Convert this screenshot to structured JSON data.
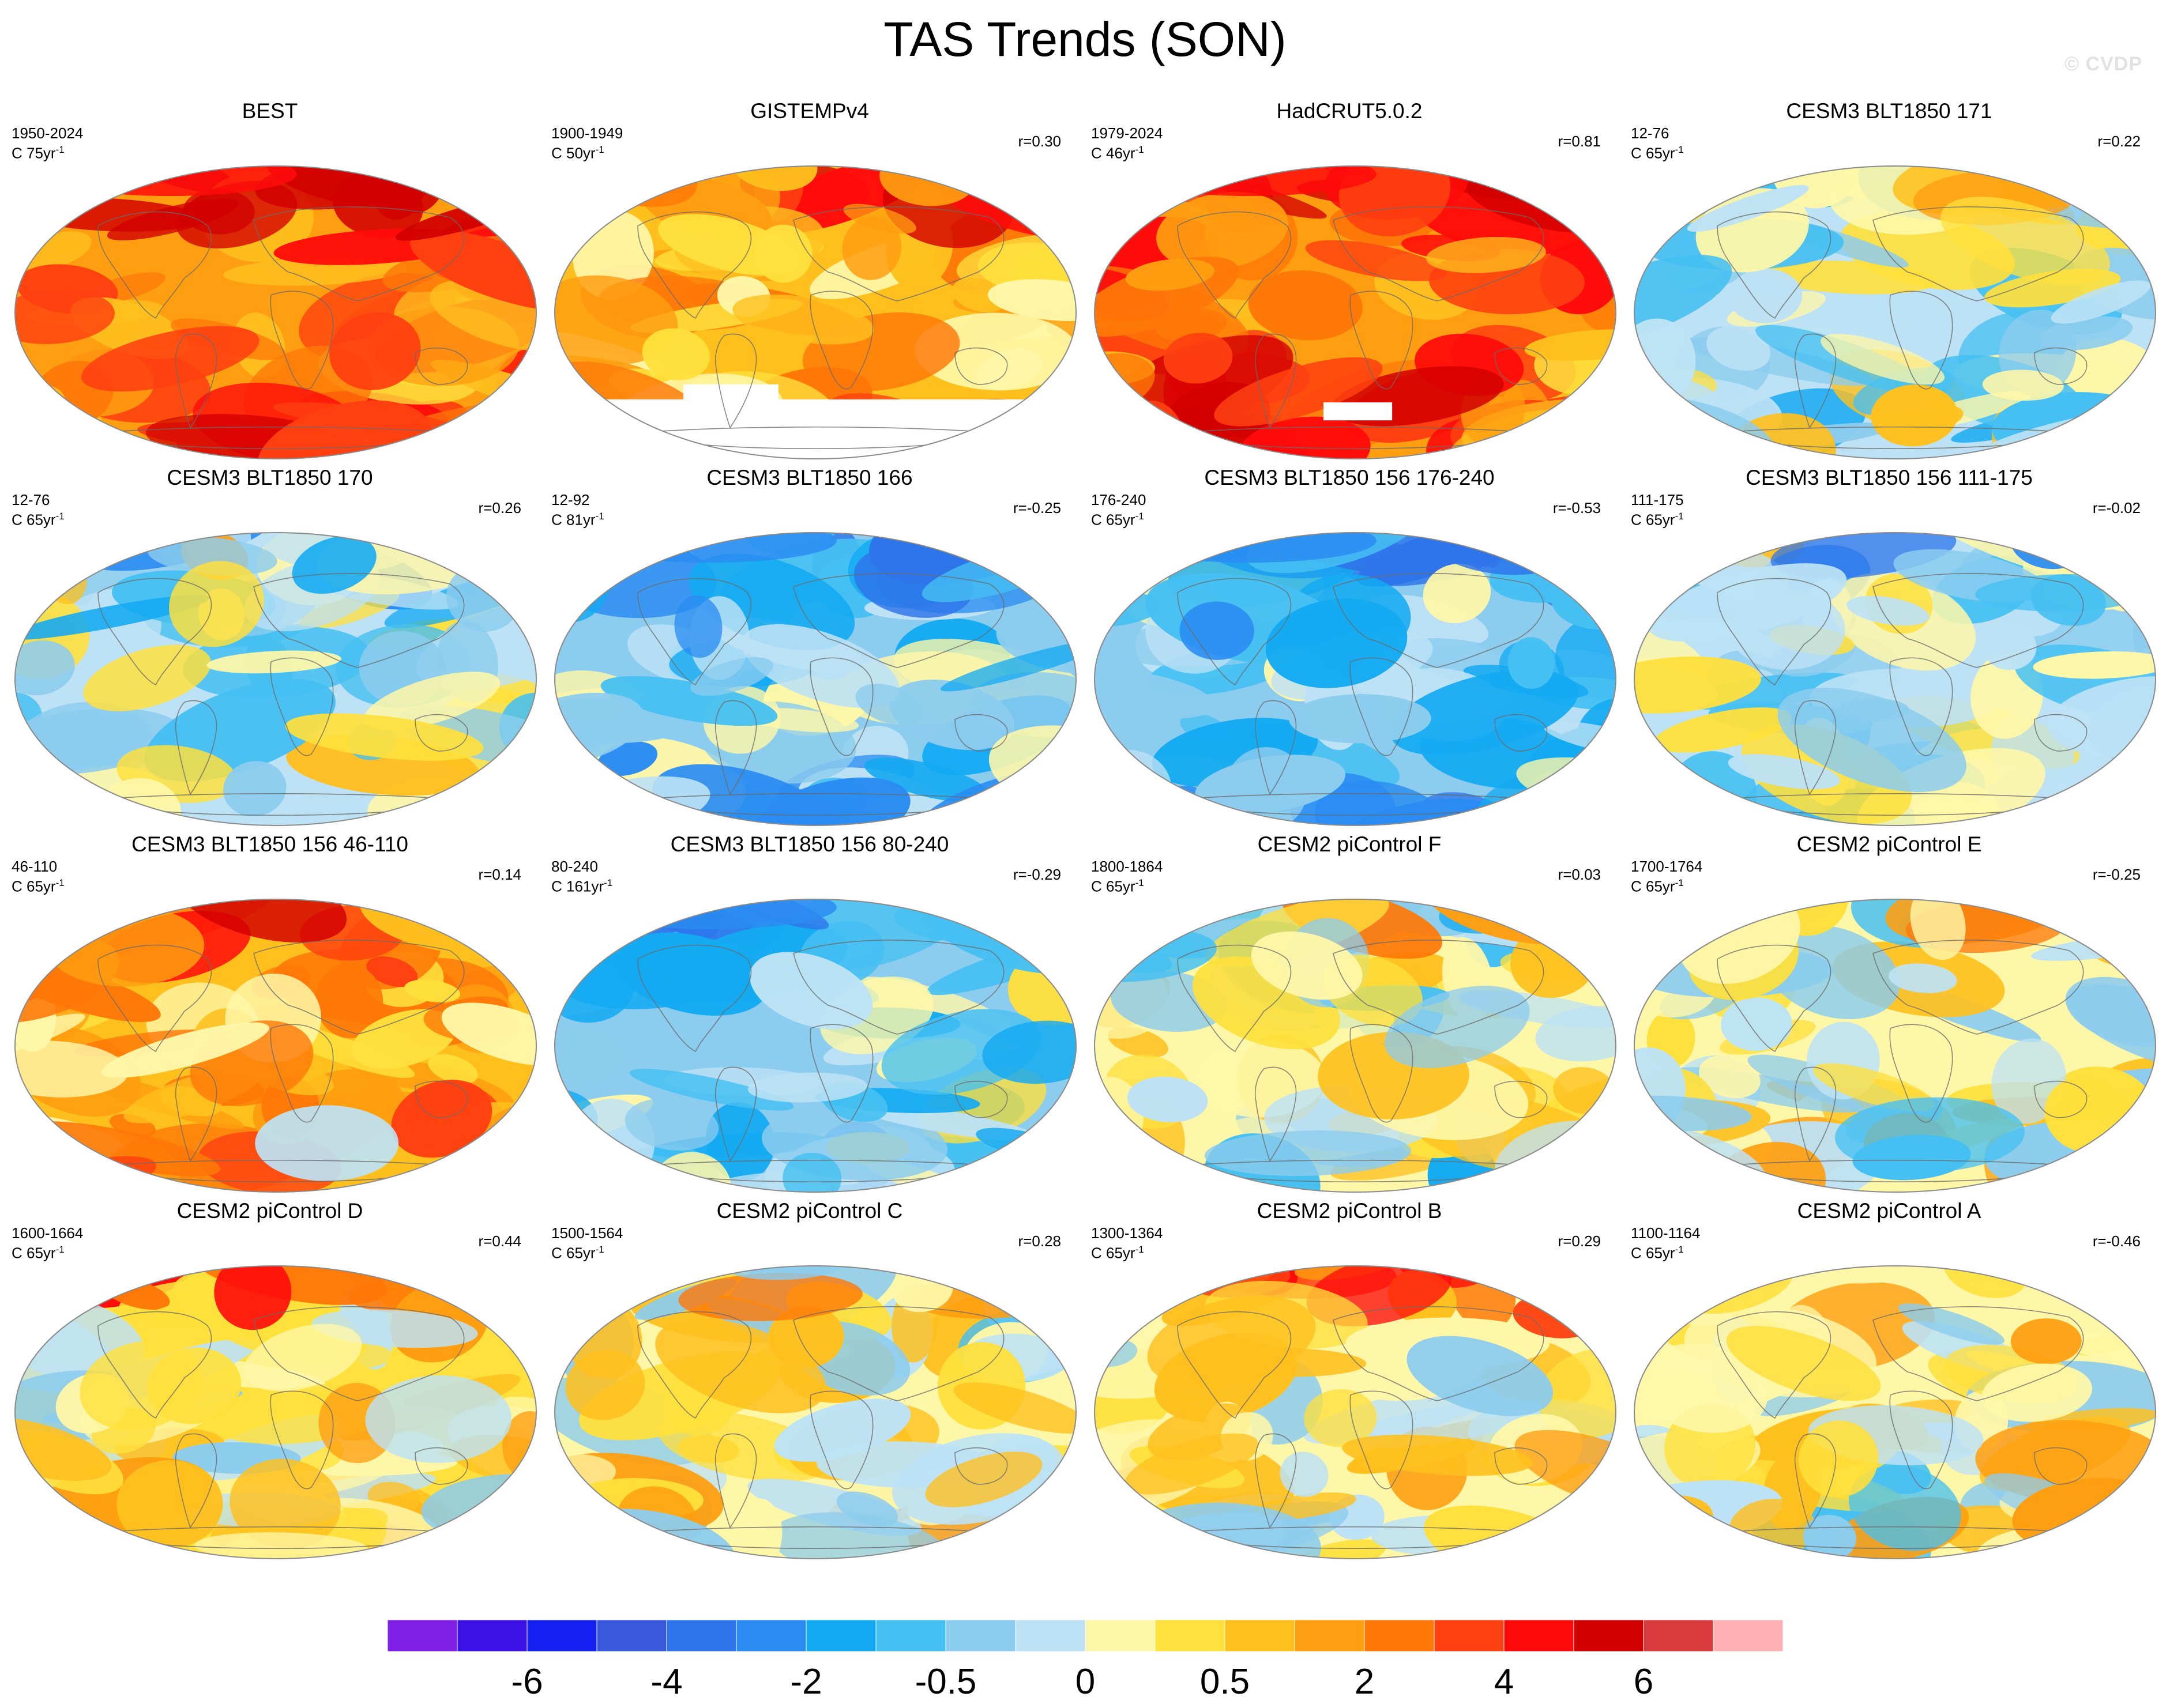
{
  "title": "TAS Trends (SON)",
  "watermark": "© CVDP",
  "panels": [
    {
      "title": "BEST",
      "period": "1950-2024",
      "rate": "C 75yr",
      "corr": "",
      "warm": 0.95,
      "mask": "none"
    },
    {
      "title": "GISTEMPv4",
      "period": "1900-1949",
      "rate": "C 50yr",
      "corr": "r=0.30",
      "warm": 0.5,
      "mask": "south"
    },
    {
      "title": "HadCRUT5.0.2",
      "period": "1979-2024",
      "rate": "C 46yr",
      "corr": "r=0.81",
      "warm": 0.95,
      "mask": "patch"
    },
    {
      "title": "CESM3 BLT1850 171",
      "period": "12-76",
      "rate": "C 65yr",
      "corr": "r=0.22",
      "warm": -0.2,
      "mask": "none"
    },
    {
      "title": "CESM3 BLT1850 170",
      "period": "12-76",
      "rate": "C 65yr",
      "corr": "r=0.26",
      "warm": -0.25,
      "mask": "none"
    },
    {
      "title": "CESM3 BLT1850 166",
      "period": "12-92",
      "rate": "C 81yr",
      "corr": "r=-0.25",
      "warm": -0.5,
      "mask": "none"
    },
    {
      "title": "CESM3 BLT1850 156 176-240",
      "period": "176-240",
      "rate": "C 65yr",
      "corr": "r=-0.53",
      "warm": -0.6,
      "mask": "none"
    },
    {
      "title": "CESM3 BLT1850 156 111-175",
      "period": "111-175",
      "rate": "C 65yr",
      "corr": "r=-0.02",
      "warm": -0.3,
      "mask": "none"
    },
    {
      "title": "CESM3 BLT1850 156 46-110",
      "period": "46-110",
      "rate": "C 65yr",
      "corr": "r=0.14",
      "warm": 0.5,
      "mask": "none"
    },
    {
      "title": "CESM3 BLT1850 156 80-240",
      "period": "80-240",
      "rate": "C 161yr",
      "corr": "r=-0.29",
      "warm": -0.45,
      "mask": "none"
    },
    {
      "title": "CESM2 piControl F",
      "period": "1800-1864",
      "rate": "C 65yr",
      "corr": "r=0.03",
      "warm": -0.1,
      "mask": "none"
    },
    {
      "title": "CESM2 piControl E",
      "period": "1700-1764",
      "rate": "C 65yr",
      "corr": "r=-0.25",
      "warm": 0.0,
      "mask": "none"
    },
    {
      "title": "CESM2 piControl D",
      "period": "1600-1664",
      "rate": "C 65yr",
      "corr": "r=0.44",
      "warm": 0.15,
      "mask": "none"
    },
    {
      "title": "CESM2 piControl C",
      "period": "1500-1564",
      "rate": "C 65yr",
      "corr": "r=0.28",
      "warm": 0.0,
      "mask": "none"
    },
    {
      "title": "CESM2 piControl B",
      "period": "1300-1364",
      "rate": "C 65yr",
      "corr": "r=0.29",
      "warm": 0.1,
      "mask": "none"
    },
    {
      "title": "CESM2 piControl A",
      "period": "1100-1164",
      "rate": "C 65yr",
      "corr": "r=-0.46",
      "warm": 0.0,
      "mask": "none"
    }
  ],
  "colorbar": {
    "colors": [
      "#7f1fe6",
      "#3a12e8",
      "#1420f0",
      "#3a58de",
      "#2e74ea",
      "#2a8cf2",
      "#14aaf2",
      "#46c0f2",
      "#8cccee",
      "#bde2f5",
      "#fff7a8",
      "#ffe03c",
      "#ffc01e",
      "#ff9e10",
      "#ff7808",
      "#ff4010",
      "#ff0a0a",
      "#d20000",
      "#d83c3c",
      "#ffb0b4"
    ],
    "labels": [
      {
        "text": "-6",
        "boundary": 2
      },
      {
        "text": "-4",
        "boundary": 4
      },
      {
        "text": "-2",
        "boundary": 6
      },
      {
        "text": "-0.5",
        "boundary": 8
      },
      {
        "text": "0",
        "boundary": 10
      },
      {
        "text": "0.5",
        "boundary": 12
      },
      {
        "text": "2",
        "boundary": 14
      },
      {
        "text": "4",
        "boundary": 16
      },
      {
        "text": "6",
        "boundary": 18
      }
    ]
  },
  "colors": {
    "land_outline": "#6a6a6a",
    "map_border": "#8a8a8a",
    "mask": "#ffffff"
  }
}
